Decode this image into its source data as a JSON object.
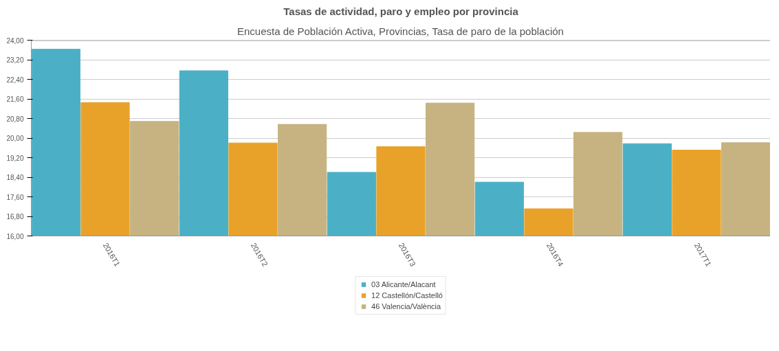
{
  "chart_data": {
    "type": "bar",
    "title": "Tasas de actividad, paro y empleo por provincia",
    "subtitle": "Encuesta de Población Activa, Provincias, Tasa de paro de la población",
    "categories": [
      "2016T1",
      "2016T2",
      "2016T3",
      "2016T4",
      "2017T1"
    ],
    "series": [
      {
        "name": "03 Alicante/Alacant",
        "color": "#4bb0c6",
        "values": [
          23.63,
          22.75,
          18.6,
          18.2,
          19.77
        ]
      },
      {
        "name": "12 Castellón/Castelló",
        "color": "#e8a22a",
        "values": [
          21.45,
          19.8,
          19.65,
          17.11,
          19.51
        ]
      },
      {
        "name": "46 Valencia/València",
        "color": "#c6b381",
        "values": [
          20.68,
          20.56,
          21.43,
          20.23,
          19.81
        ]
      }
    ],
    "ylim": [
      16,
      24
    ],
    "yticks": [
      {
        "value": 16,
        "label": "16,00"
      },
      {
        "value": 16.8,
        "label": "16,80"
      },
      {
        "value": 17.6,
        "label": "17,60"
      },
      {
        "value": 18.4,
        "label": "18,40"
      },
      {
        "value": 19.2,
        "label": "19,20"
      },
      {
        "value": 20,
        "label": "20,00"
      },
      {
        "value": 20.8,
        "label": "20,80"
      },
      {
        "value": 21.6,
        "label": "21,60"
      },
      {
        "value": 22.4,
        "label": "22,40"
      },
      {
        "value": 23.2,
        "label": "23,20"
      },
      {
        "value": 24,
        "label": "24,00"
      }
    ],
    "grid": "y",
    "legend": "bottom"
  }
}
